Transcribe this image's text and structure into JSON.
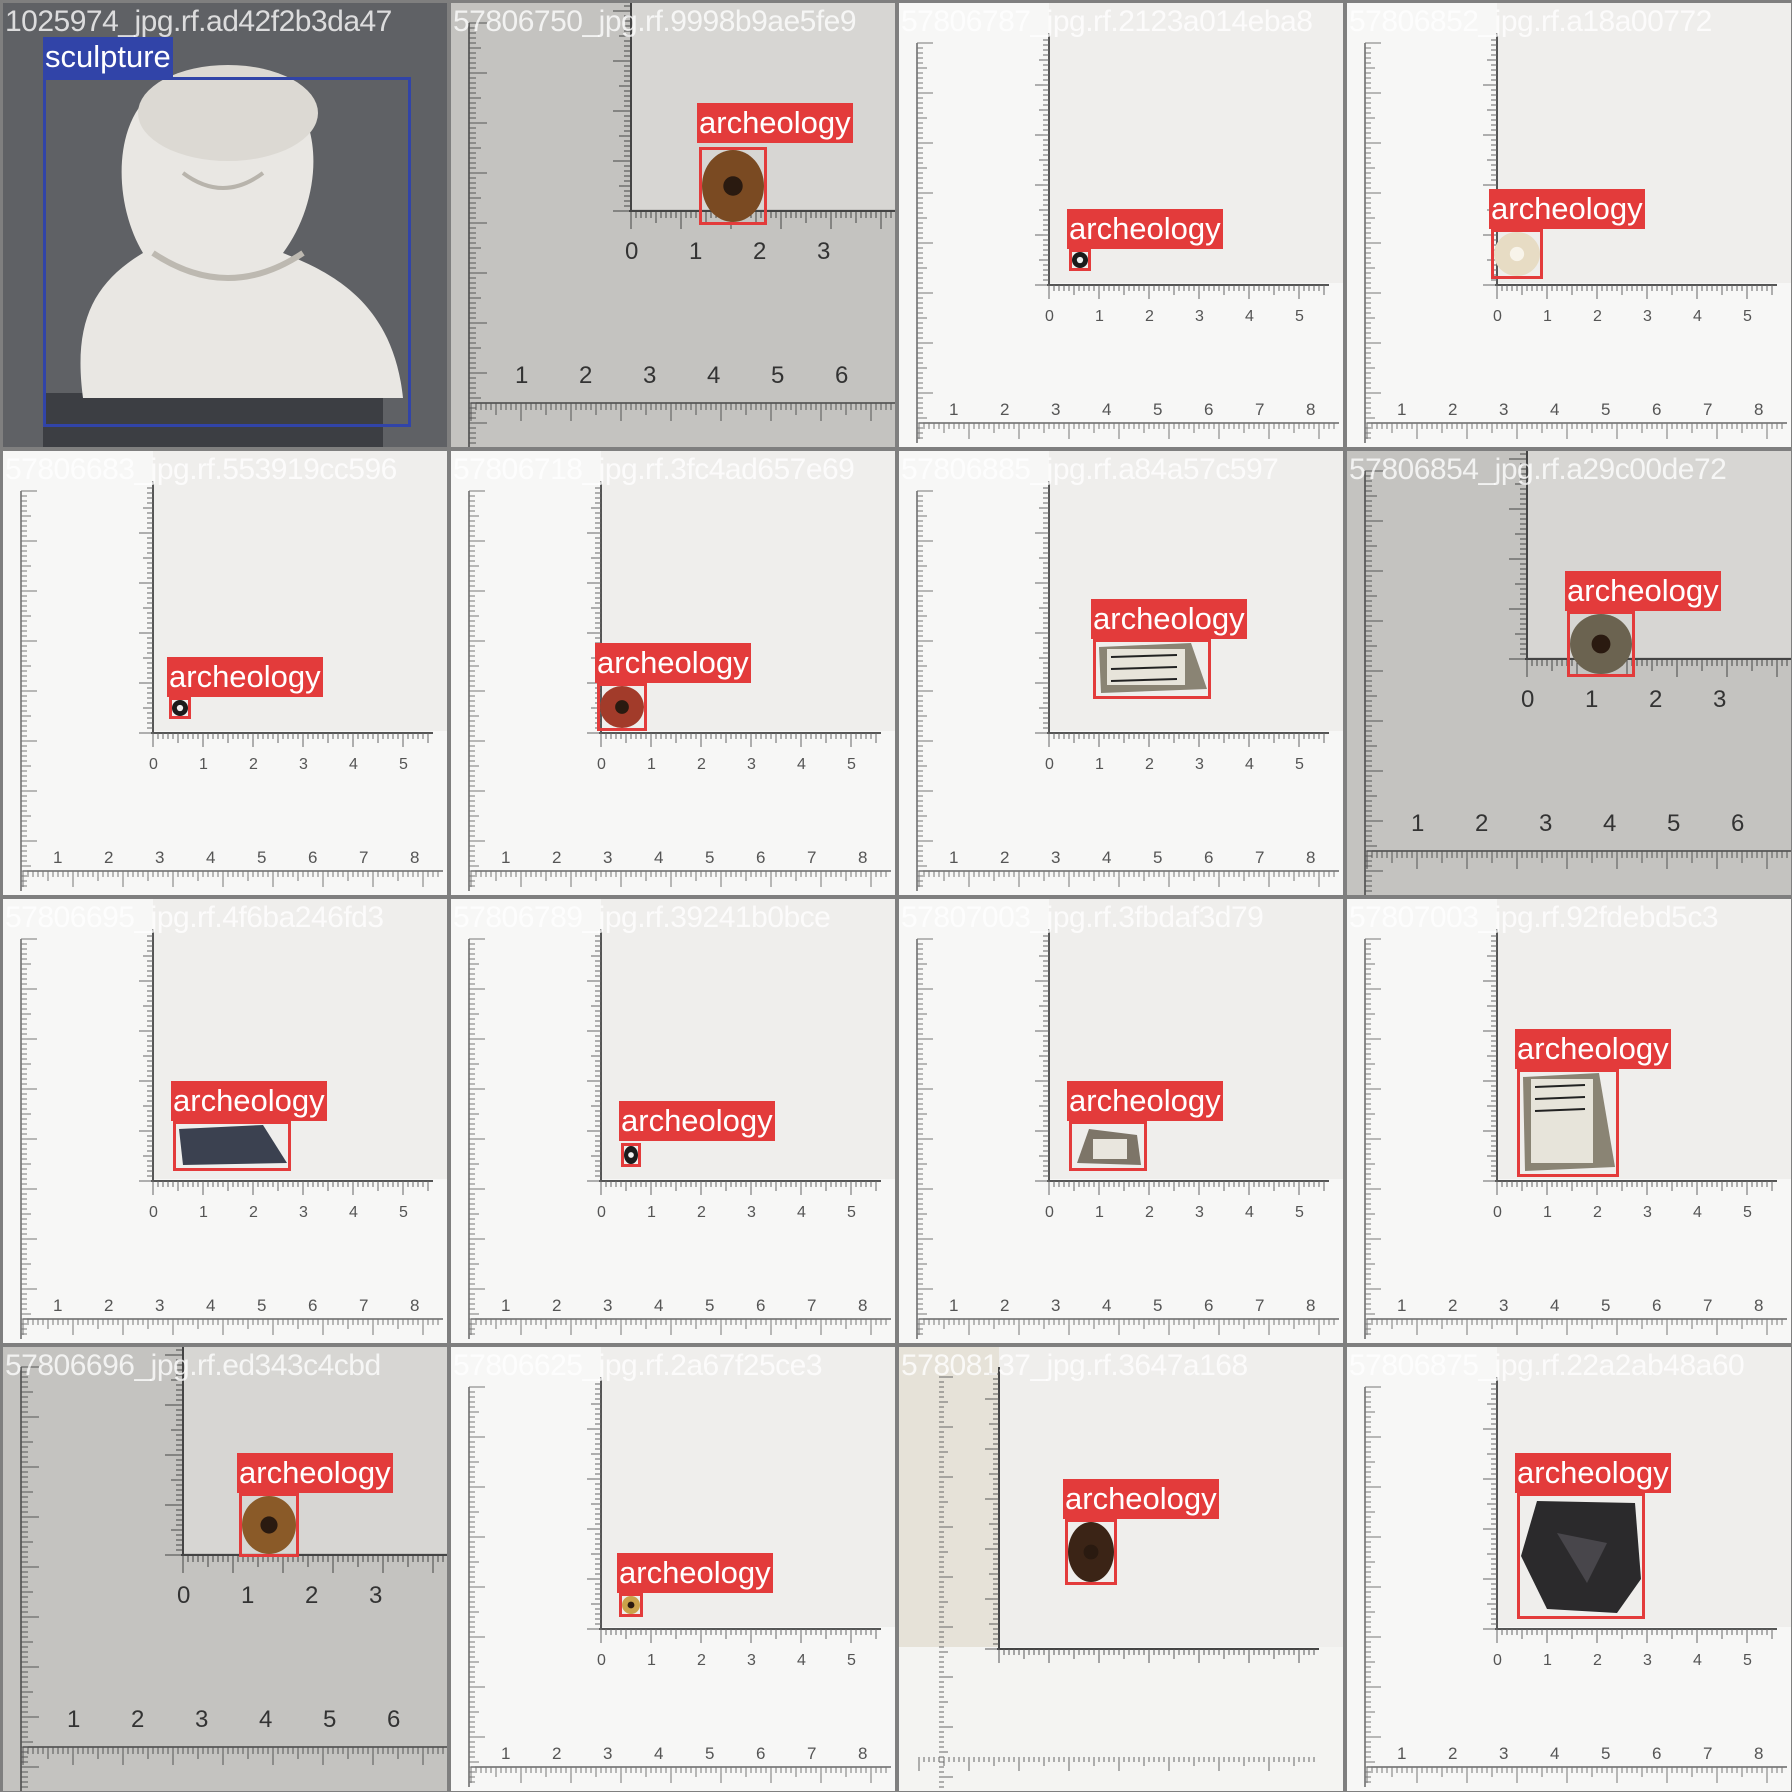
{
  "palette": {
    "box": "#e33b3b",
    "box_alt": "#3144a8",
    "label_text": "#ffffff",
    "grid_bg": "#7f7f7f"
  },
  "tiles": [
    {
      "filename": "1025974_jpg.rf.ad42f2b3da47",
      "label": "sculpture",
      "bg": "dark",
      "ruler": "none"
    },
    {
      "filename": "57806750_jpg.rf.9998b9ae5fe9",
      "label": "archeology",
      "bg": "gray",
      "ruler": "big",
      "ruler_top": "2",
      "ruler_bottom": "3",
      "object": "bead-amber"
    },
    {
      "filename": "57806787_jpg.rf.2123a014eba8",
      "label": "archeology",
      "bg": "white",
      "ruler": "small",
      "object": "bead-black"
    },
    {
      "filename": "57806852_jpg.rf.a18a00772",
      "label": "archeology",
      "bg": "white",
      "ruler": "small",
      "object": "bead-cream"
    },
    {
      "filename": "57806683_jpg.rf.553919cc596",
      "label": "archeology",
      "bg": "white",
      "ruler": "small",
      "object": "bead-black"
    },
    {
      "filename": "57806718_jpg.rf.3fc4ad657e69",
      "label": "archeology",
      "bg": "white",
      "ruler": "small",
      "object": "bead-red"
    },
    {
      "filename": "57806885_jpg.rf.a84a57c597",
      "label": "archeology",
      "bg": "white",
      "ruler": "small",
      "object": "shard-labeled"
    },
    {
      "filename": "57806854_jpg.rf.a29c00de72",
      "label": "archeology",
      "bg": "gray",
      "ruler": "big",
      "ruler_top": "3",
      "ruler_bottom": "4",
      "object": "bead-stone"
    },
    {
      "filename": "57806695_jpg.rf.4f6ba246fd3",
      "label": "archeology",
      "bg": "white",
      "ruler": "small",
      "object": "shard-dark"
    },
    {
      "filename": "57806789_jpg.rf.39241b0bce",
      "label": "archeology",
      "bg": "white",
      "ruler": "small",
      "object": "bead-black"
    },
    {
      "filename": "57807003_jpg.rf.3fbdaf3d79",
      "label": "archeology",
      "bg": "white",
      "ruler": "small",
      "object": "shard-small"
    },
    {
      "filename": "57807003_jpg.rf.92fdebd5c3",
      "label": "archeology",
      "bg": "white",
      "ruler": "small",
      "object": "shard-labeled2"
    },
    {
      "filename": "57806696_jpg.rf.ed343c4cbd",
      "label": "archeology",
      "bg": "gray",
      "ruler": "big",
      "ruler_top": "2",
      "ruler_bottom": "3",
      "object": "bead-amber2"
    },
    {
      "filename": "57806625_jpg.rf.2a67f25ce3",
      "label": "archeology",
      "bg": "white",
      "ruler": "small",
      "object": "bead-tiny"
    },
    {
      "filename": "57808137_jpg.rf.3647a168",
      "label": "archeology",
      "bg": "white",
      "ruler": "tall",
      "object": "bead-brown"
    },
    {
      "filename": "57806875_jpg.rf.22a2ab48a60",
      "label": "archeology",
      "bg": "white",
      "ruler": "small",
      "object": "stone-big"
    }
  ]
}
